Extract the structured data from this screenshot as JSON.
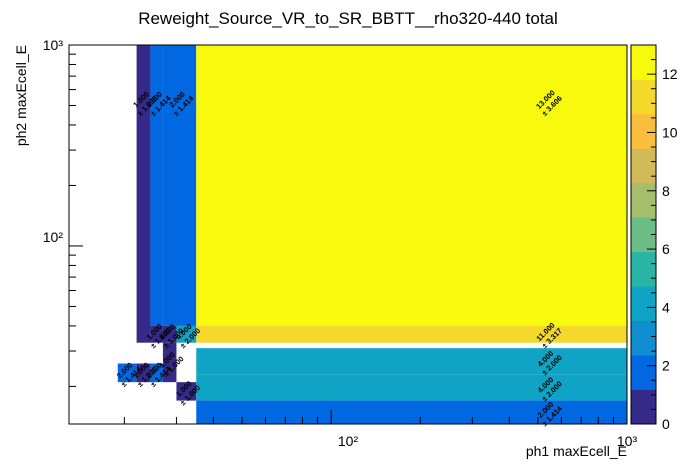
{
  "chart_data": {
    "type": "heatmap",
    "title": "Reweight_Source_VR_to_SR_BBTT__rho320-440 total",
    "xlabel": "ph1 maxEcell_E",
    "ylabel": "ph2 maxEcell_E",
    "xscale": "log",
    "yscale": "log",
    "xlim": [
      13,
      1000
    ],
    "ylim": [
      13,
      1000
    ],
    "zlim": [
      0,
      13
    ],
    "x_ticks": [
      "10²",
      "10³"
    ],
    "y_ticks": [
      "10²",
      "10³"
    ],
    "colorbar_ticks": [
      "0",
      "2",
      "4",
      "6",
      "8",
      "10",
      "12"
    ],
    "colorbar_values": [
      0,
      2,
      4,
      6,
      8,
      10,
      12
    ],
    "colormap": [
      "#352a87",
      "#0268e1",
      "#108ed2",
      "#0fa4c5",
      "#2ab4a6",
      "#6bbd85",
      "#a5be6b",
      "#d2ba58",
      "#f9be3b",
      "#f5d92a",
      "#f8fa0d"
    ],
    "cells": [
      {
        "x0": 22,
        "x1": 24.5,
        "y0": 33,
        "y1": 1000,
        "value": 1.0,
        "label": "1.000",
        "error": "± 1.000"
      },
      {
        "x0": 24.5,
        "x1": 27,
        "y0": 40,
        "y1": 1000,
        "value": 2.0,
        "label": "2.000",
        "error": "± 1.414"
      },
      {
        "x0": 27,
        "x1": 35,
        "y0": 40,
        "y1": 1000,
        "value": 2.0,
        "label": "2.000",
        "error": "± 1.414"
      },
      {
        "x0": 35,
        "x1": 1000,
        "y0": 40,
        "y1": 1000,
        "value": 13.0,
        "label": "13.000",
        "error": "± 3.606"
      },
      {
        "x0": 24.5,
        "x1": 27,
        "y0": 33,
        "y1": 40,
        "value": 1.0,
        "label": "1.000",
        "error": "± 1.000"
      },
      {
        "x0": 27,
        "x1": 30,
        "y0": 33,
        "y1": 40,
        "value": 1.0,
        "label": "1.000",
        "error": "± 1.000"
      },
      {
        "x0": 30,
        "x1": 35,
        "y0": 33,
        "y1": 40,
        "value": 4.0,
        "label": "4.000",
        "error": "± 2.000"
      },
      {
        "x0": 35,
        "x1": 1000,
        "y0": 33,
        "y1": 40,
        "value": 11.0,
        "label": "11.000",
        "error": "± 3.317"
      },
      {
        "x0": 19,
        "x1": 22,
        "y0": 21,
        "y1": 26,
        "value": 2.0,
        "label": "2.000",
        "error": "± 1.414"
      },
      {
        "x0": 22,
        "x1": 24.5,
        "y0": 21,
        "y1": 26,
        "value": 1.0,
        "label": "1.000",
        "error": "± 1.000"
      },
      {
        "x0": 24.5,
        "x1": 27,
        "y0": 21,
        "y1": 26,
        "value": 2.0,
        "label": "2.000",
        "error": "± 1.414"
      },
      {
        "x0": 27,
        "x1": 30,
        "y0": 21,
        "y1": 33,
        "value": 1.0,
        "label": "1.000",
        "error": "± 1.000"
      },
      {
        "x0": 35,
        "x1": 1000,
        "y0": 23,
        "y1": 31,
        "value": 4.0,
        "label": "4.000",
        "error": "± 2.000"
      },
      {
        "x0": 30,
        "x1": 35,
        "y0": 17,
        "y1": 21,
        "value": 1.0,
        "label": "1.000",
        "error": "± 1.000"
      },
      {
        "x0": 35,
        "x1": 1000,
        "y0": 17,
        "y1": 23,
        "value": 4.0,
        "label": "4.000",
        "error": "± 2.000"
      },
      {
        "x0": 35,
        "x1": 1000,
        "y0": 13,
        "y1": 17,
        "value": 2.0,
        "label": "2.000",
        "error": "± 1.414"
      }
    ]
  }
}
